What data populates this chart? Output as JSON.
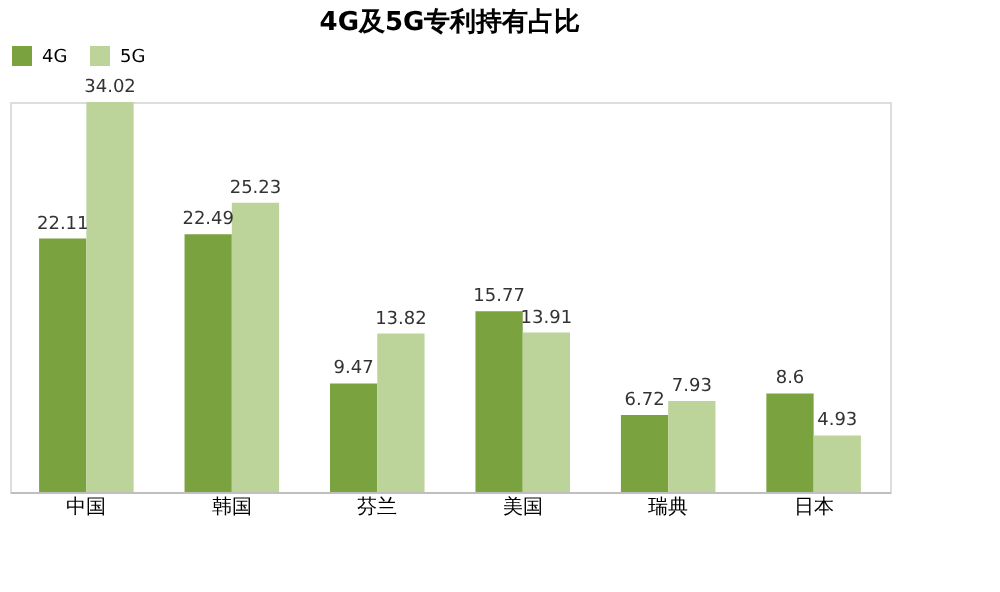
{
  "chart_data": {
    "type": "bar",
    "title": "4G及5G专利持有占比",
    "categories": [
      "中国",
      "韩国",
      "芬兰",
      "美国",
      "瑞典",
      "日本"
    ],
    "series": [
      {
        "name": "4G",
        "color": "#7aa23e",
        "values": [
          22.11,
          22.49,
          9.47,
          15.77,
          6.72,
          8.6
        ]
      },
      {
        "name": "5G",
        "color": "#bcd49a",
        "values": [
          34.02,
          25.23,
          13.82,
          13.91,
          7.93,
          4.93
        ]
      }
    ],
    "data_labels": true,
    "legend": "top",
    "grid": false
  }
}
